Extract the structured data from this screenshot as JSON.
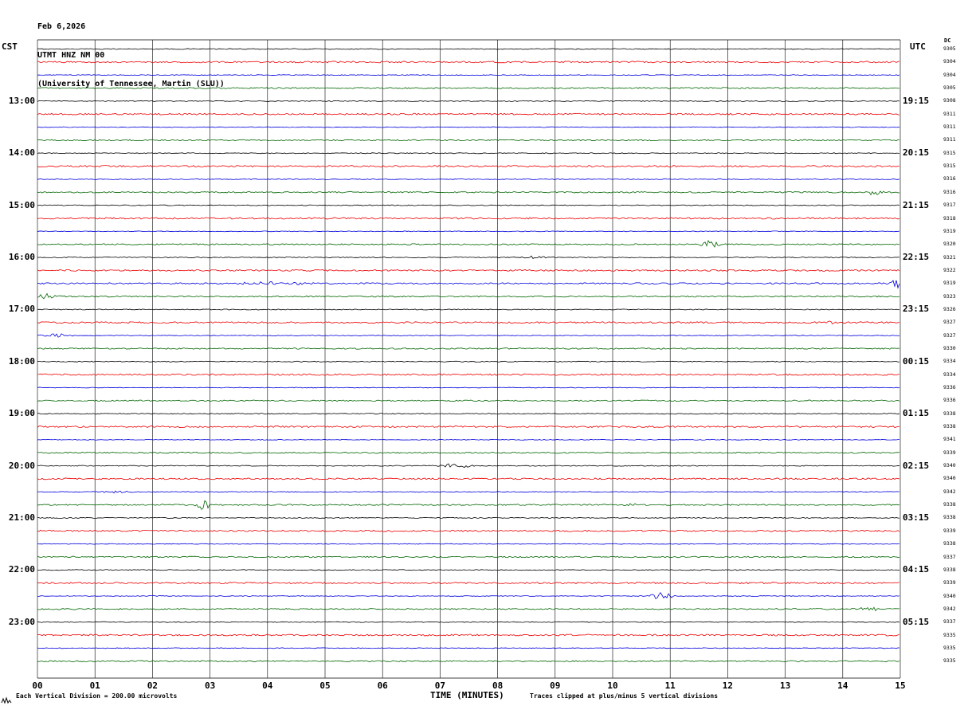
{
  "title": {
    "date": "Feb 6,2026",
    "station": "UTMT HNZ NM 00",
    "affiliation": "(University of Tennessee, Martin (SLU))"
  },
  "axes": {
    "left_label": "CST",
    "right_label": "UTC",
    "dc_header": "DC",
    "x_title": "TIME (MINUTES)",
    "x_ticks": [
      "00",
      "01",
      "02",
      "03",
      "04",
      "05",
      "06",
      "07",
      "08",
      "09",
      "10",
      "11",
      "12",
      "13",
      "14",
      "15"
    ]
  },
  "footer": {
    "scale_note": "Each Vertical Division =  200.00 microvolts",
    "clip_note": "Traces clipped at plus/minus 5 vertical divisions"
  },
  "chart_data": {
    "type": "line",
    "subtype": "helicorder-seismogram",
    "station": "UTMT HNZ NM 00",
    "minutes_per_line": 15,
    "x_range": [
      0,
      15
    ],
    "grid": true,
    "colors": {
      "black": "#000000",
      "red": "#ee0000",
      "blue": "#0000dd",
      "green": "#006600"
    },
    "color_cycle": [
      "black",
      "red",
      "blue",
      "green"
    ],
    "noise": {
      "black": 0.55,
      "red": 1.0,
      "blue": 0.45,
      "green": 0.8
    },
    "hour_rows": [
      {
        "row": 4,
        "cst": "13:00",
        "utc": "19:15"
      },
      {
        "row": 8,
        "cst": "14:00",
        "utc": "20:15"
      },
      {
        "row": 12,
        "cst": "15:00",
        "utc": "21:15"
      },
      {
        "row": 16,
        "cst": "16:00",
        "utc": "22:15"
      },
      {
        "row": 20,
        "cst": "17:00",
        "utc": "23:15"
      },
      {
        "row": 24,
        "cst": "18:00",
        "utc": "00:15"
      },
      {
        "row": 28,
        "cst": "19:00",
        "utc": "01:15"
      },
      {
        "row": 32,
        "cst": "20:00",
        "utc": "02:15"
      },
      {
        "row": 36,
        "cst": "21:00",
        "utc": "03:15"
      },
      {
        "row": 40,
        "cst": "22:00",
        "utc": "04:15"
      },
      {
        "row": 44,
        "cst": "23:00",
        "utc": "05:15"
      }
    ],
    "rows": [
      {
        "t": "12:00",
        "c": "black",
        "dc": 9305
      },
      {
        "t": "12:15",
        "c": "red",
        "dc": 9304
      },
      {
        "t": "12:30",
        "c": "blue",
        "dc": 9304
      },
      {
        "t": "12:45",
        "c": "green",
        "dc": 9305
      },
      {
        "t": "13:00",
        "c": "black",
        "dc": 9308
      },
      {
        "t": "13:15",
        "c": "red",
        "dc": 9311
      },
      {
        "t": "13:30",
        "c": "blue",
        "dc": 9311
      },
      {
        "t": "13:45",
        "c": "green",
        "dc": 9311
      },
      {
        "t": "14:00",
        "c": "black",
        "dc": 9315
      },
      {
        "t": "14:15",
        "c": "red",
        "dc": 9315
      },
      {
        "t": "14:30",
        "c": "blue",
        "dc": 9316
      },
      {
        "t": "14:45",
        "c": "green",
        "dc": 9316,
        "ev": [
          {
            "m": 14.55,
            "s": 0.12,
            "a": 3
          }
        ]
      },
      {
        "t": "15:00",
        "c": "black",
        "dc": 9317
      },
      {
        "t": "15:15",
        "c": "red",
        "dc": 9318
      },
      {
        "t": "15:30",
        "c": "blue",
        "dc": 9319
      },
      {
        "t": "15:45",
        "c": "green",
        "dc": 9320,
        "ev": [
          {
            "m": 11.7,
            "s": 0.1,
            "a": 6
          }
        ]
      },
      {
        "t": "16:00",
        "c": "black",
        "dc": 9321,
        "ev": [
          {
            "m": 8.65,
            "s": 0.15,
            "a": 2
          }
        ]
      },
      {
        "t": "16:15",
        "c": "red",
        "dc": 9322
      },
      {
        "t": "16:30",
        "c": "blue",
        "dc": 9319,
        "n": 0.9,
        "ev": [
          {
            "m": 4.05,
            "s": 0.5,
            "a": 1.6
          },
          {
            "m": 14.93,
            "s": 0.07,
            "a": 9
          }
        ]
      },
      {
        "t": "16:45",
        "c": "green",
        "dc": 9323,
        "ev": [
          {
            "m": 0.15,
            "s": 0.12,
            "a": 4
          }
        ]
      },
      {
        "t": "17:00",
        "c": "black",
        "dc": 9326
      },
      {
        "t": "17:15",
        "c": "red",
        "dc": 9327,
        "ev": [
          {
            "m": 13.75,
            "s": 0.05,
            "a": 2.5
          }
        ]
      },
      {
        "t": "17:30",
        "c": "blue",
        "dc": 9327,
        "ev": [
          {
            "m": 0.3,
            "s": 0.15,
            "a": 3
          }
        ]
      },
      {
        "t": "17:45",
        "c": "green",
        "dc": 9330
      },
      {
        "t": "18:00",
        "c": "black",
        "dc": 9334
      },
      {
        "t": "18:15",
        "c": "red",
        "dc": 9334
      },
      {
        "t": "18:30",
        "c": "blue",
        "dc": 9336
      },
      {
        "t": "18:45",
        "c": "green",
        "dc": 9336
      },
      {
        "t": "19:00",
        "c": "black",
        "dc": 9338
      },
      {
        "t": "19:15",
        "c": "red",
        "dc": 9338
      },
      {
        "t": "19:30",
        "c": "blue",
        "dc": 9341
      },
      {
        "t": "19:45",
        "c": "green",
        "dc": 9339
      },
      {
        "t": "20:00",
        "c": "black",
        "dc": 9340,
        "ev": [
          {
            "m": 7.25,
            "s": 0.18,
            "a": 3.5
          }
        ]
      },
      {
        "t": "20:15",
        "c": "red",
        "dc": 9340
      },
      {
        "t": "20:30",
        "c": "blue",
        "dc": 9342,
        "ev": [
          {
            "m": 1.4,
            "s": 0.2,
            "a": 1.8
          }
        ]
      },
      {
        "t": "20:45",
        "c": "green",
        "dc": 9338,
        "ev": [
          {
            "m": 2.9,
            "s": 0.08,
            "a": 7
          },
          {
            "m": 10.3,
            "s": 0.1,
            "a": 1.5
          },
          {
            "m": 12.2,
            "s": 0.1,
            "a": 1.5
          }
        ]
      },
      {
        "t": "21:00",
        "c": "black",
        "dc": 9338
      },
      {
        "t": "21:15",
        "c": "red",
        "dc": 9339
      },
      {
        "t": "21:30",
        "c": "blue",
        "dc": 9338
      },
      {
        "t": "21:45",
        "c": "green",
        "dc": 9337
      },
      {
        "t": "22:00",
        "c": "black",
        "dc": 9338
      },
      {
        "t": "22:15",
        "c": "red",
        "dc": 9339
      },
      {
        "t": "22:30",
        "c": "blue",
        "dc": 9340,
        "ev": [
          {
            "m": 10.85,
            "s": 0.12,
            "a": 5
          }
        ]
      },
      {
        "t": "22:45",
        "c": "green",
        "dc": 9342,
        "ev": [
          {
            "m": 14.45,
            "s": 0.12,
            "a": 2.5
          }
        ]
      },
      {
        "t": "23:00",
        "c": "black",
        "dc": 9337
      },
      {
        "t": "23:15",
        "c": "red",
        "dc": 9335
      },
      {
        "t": "23:30",
        "c": "blue",
        "dc": 9335
      },
      {
        "t": "23:45",
        "c": "green",
        "dc": 9335
      }
    ]
  }
}
